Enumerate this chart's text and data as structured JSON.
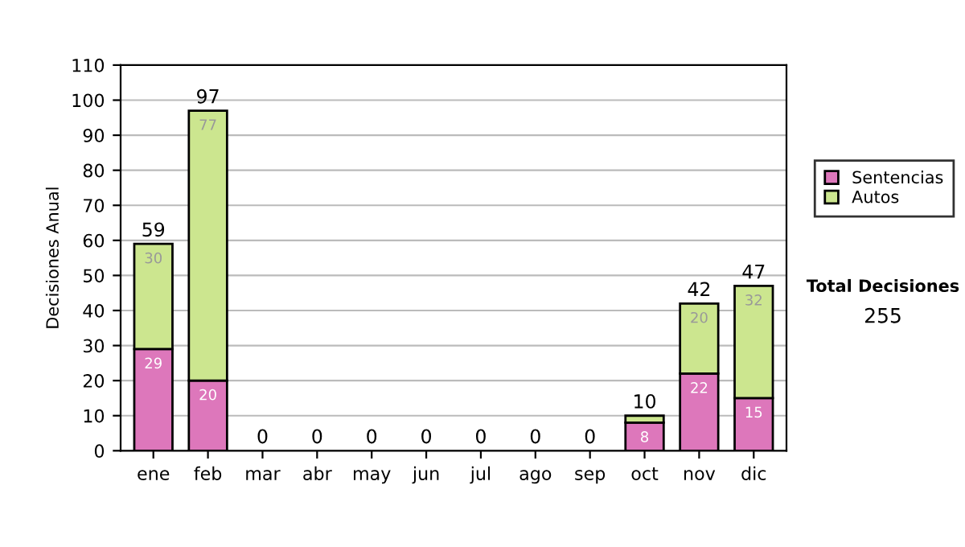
{
  "chart_data": {
    "type": "bar",
    "stacked": true,
    "ylabel": "Decisiones Anual",
    "categories": [
      "ene",
      "feb",
      "mar",
      "abr",
      "may",
      "jun",
      "jul",
      "ago",
      "sep",
      "oct",
      "nov",
      "dic"
    ],
    "series": [
      {
        "name": "Sentencias",
        "color": "#dd77bb",
        "values": [
          29,
          20,
          0,
          0,
          0,
          0,
          0,
          0,
          0,
          8,
          22,
          15
        ],
        "value_labels": [
          "29",
          "20",
          null,
          null,
          null,
          null,
          null,
          null,
          null,
          "8",
          "22",
          "15"
        ]
      },
      {
        "name": "Autos",
        "color": "#cce68f",
        "values": [
          30,
          77,
          0,
          0,
          0,
          0,
          0,
          0,
          0,
          2,
          20,
          32
        ],
        "value_labels": [
          "30",
          "77",
          null,
          null,
          null,
          null,
          null,
          null,
          null,
          null,
          "20",
          "32"
        ]
      }
    ],
    "totals": [
      "59",
      "97",
      "0",
      "0",
      "0",
      "0",
      "0",
      "0",
      "0",
      "10",
      "42",
      "47"
    ],
    "ylim": [
      0,
      110
    ],
    "yticks": [
      0,
      10,
      20,
      30,
      40,
      50,
      60,
      70,
      80,
      90,
      100,
      110
    ],
    "grid": "y",
    "legend": "right",
    "annotations": [
      "Total Decisiones",
      "255"
    ]
  }
}
